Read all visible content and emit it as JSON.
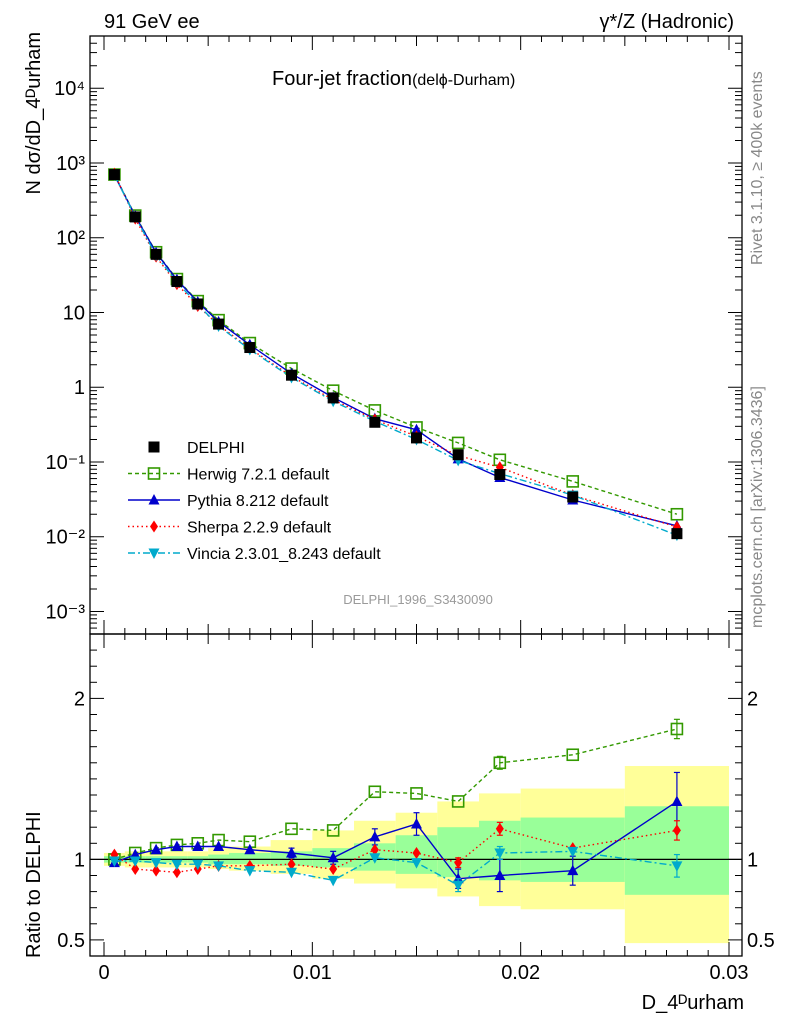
{
  "header": {
    "left": "91 GeV ee",
    "right": "γ*/Z (Hadronic)"
  },
  "side_labels": {
    "rivet": "Rivet 3.1.10, ≥ 400k events",
    "mcplots": "mcplots.cern.ch [arXiv:1306.3436]"
  },
  "chart_data": {
    "type": "line",
    "title": "Four-jet fraction",
    "title_sub": "(delϕ-Durham)",
    "xlabel": "D_4ᴰurham",
    "ylabel": "N dσ/dD_4ᴰurham",
    "ratio_ylabel": "Ratio to DELPHI",
    "analysis": "DELPHI_1996_S3430090",
    "xlim": [
      0,
      0.03
    ],
    "ylim": [
      0.0005,
      50000
    ],
    "ratio_ylim": [
      0.4,
      2.4
    ],
    "x_ticks": [
      "0",
      "0.01",
      "0.02",
      "0.03"
    ],
    "y_ticks": [
      "10⁻³",
      "10⁻²",
      "10⁻¹",
      "1",
      "10",
      "10²",
      "10³",
      "10⁴"
    ],
    "ratio_ticks": [
      "0.5",
      "1",
      "2"
    ],
    "x": [
      0.0005,
      0.0015,
      0.0025,
      0.0035,
      0.0045,
      0.0055,
      0.007,
      0.009,
      0.011,
      0.013,
      0.015,
      0.017,
      0.019,
      0.0225,
      0.0275
    ],
    "bin_edges": [
      0,
      0.001,
      0.002,
      0.003,
      0.004,
      0.005,
      0.006,
      0.008,
      0.01,
      0.012,
      0.014,
      0.016,
      0.018,
      0.02,
      0.025,
      0.03
    ],
    "band_total": [
      [
        0.96,
        1.04
      ],
      [
        0.95,
        1.05
      ],
      [
        0.95,
        1.05
      ],
      [
        0.95,
        1.05
      ],
      [
        0.95,
        1.05
      ],
      [
        0.94,
        1.07
      ],
      [
        0.93,
        1.08
      ],
      [
        0.91,
        1.12
      ],
      [
        0.88,
        1.18
      ],
      [
        0.85,
        1.24
      ],
      [
        0.82,
        1.29
      ],
      [
        0.77,
        1.36
      ],
      [
        0.71,
        1.41
      ],
      [
        0.69,
        1.44
      ],
      [
        0.48,
        1.58
      ]
    ],
    "band_stat": [
      [
        0.98,
        1.02
      ],
      [
        0.98,
        1.02
      ],
      [
        0.98,
        1.02
      ],
      [
        0.98,
        1.02
      ],
      [
        0.98,
        1.02
      ],
      [
        0.97,
        1.03
      ],
      [
        0.97,
        1.04
      ],
      [
        0.96,
        1.05
      ],
      [
        0.95,
        1.07
      ],
      [
        0.93,
        1.1
      ],
      [
        0.91,
        1.15
      ],
      [
        0.89,
        1.2
      ],
      [
        0.87,
        1.24
      ],
      [
        0.86,
        1.26
      ],
      [
        0.78,
        1.33
      ]
    ],
    "series": [
      {
        "name": "DELPHI",
        "color": "#000000",
        "marker": "square",
        "values": [
          700,
          190,
          60,
          26,
          13,
          7,
          3.4,
          1.45,
          0.72,
          0.34,
          0.21,
          0.125,
          0.068,
          0.034,
          0.011
        ],
        "ratio": [
          1,
          1,
          1,
          1,
          1,
          1,
          1,
          1,
          1,
          1,
          1,
          1,
          1,
          1,
          1
        ]
      },
      {
        "name": "Herwig 7.2.1 default",
        "color": "#339900",
        "marker": "open-square",
        "dash": "4,3",
        "values": [
          700,
          198,
          64,
          28,
          14.2,
          7.9,
          3.9,
          1.78,
          0.9,
          0.49,
          0.29,
          0.18,
          0.107,
          0.055,
          0.02
        ],
        "ratio": [
          1.0,
          1.04,
          1.07,
          1.09,
          1.1,
          1.12,
          1.11,
          1.19,
          1.18,
          1.42,
          1.41,
          1.36,
          1.6,
          1.65,
          1.81
        ],
        "ratio_err": [
          0,
          0,
          0,
          0,
          0,
          0,
          0,
          0,
          0,
          0,
          0,
          0,
          0.04,
          0,
          0.06
        ]
      },
      {
        "name": "Pythia 8.212 default",
        "color": "#0000cc",
        "marker": "triangle-up",
        "values": [
          690,
          195,
          63,
          27.5,
          13.8,
          7.5,
          3.7,
          1.52,
          0.73,
          0.38,
          0.27,
          0.11,
          0.062,
          0.031,
          0.014
        ],
        "ratio": [
          0.98,
          1.03,
          1.06,
          1.08,
          1.08,
          1.08,
          1.06,
          1.04,
          1.01,
          1.14,
          1.22,
          0.88,
          0.9,
          0.93,
          1.36
        ],
        "ratio_err": [
          0,
          0,
          0,
          0,
          0,
          0,
          0,
          0.03,
          0.04,
          0.05,
          0.07,
          0.06,
          0.1,
          0.09,
          0.18
        ]
      },
      {
        "name": "Sherpa 2.2.9 default",
        "color": "#ff0000",
        "marker": "diamond",
        "dash": "1.5,3",
        "values": [
          720,
          180,
          56,
          24,
          12.2,
          6.8,
          3.3,
          1.4,
          0.68,
          0.37,
          0.22,
          0.122,
          0.085,
          0.036,
          0.0135
        ],
        "ratio": [
          1.03,
          0.94,
          0.93,
          0.92,
          0.94,
          0.96,
          0.96,
          0.97,
          0.94,
          1.06,
          1.04,
          0.98,
          1.19,
          1.07,
          1.18
        ],
        "ratio_err": [
          0,
          0,
          0,
          0,
          0,
          0,
          0,
          0,
          0,
          0,
          0,
          0.03,
          0.04,
          0,
          0.06
        ]
      },
      {
        "name": "Vincia 2.3.01_8.243 default",
        "color": "#00aacc",
        "marker": "triangle-down",
        "dash": "7,3,2,3",
        "values": [
          690,
          190,
          58,
          25.5,
          12.8,
          6.6,
          3.2,
          1.35,
          0.65,
          0.35,
          0.2,
          0.105,
          0.07,
          0.036,
          0.0105
        ],
        "ratio": [
          0.99,
          0.99,
          0.98,
          0.97,
          0.97,
          0.96,
          0.93,
          0.92,
          0.87,
          1.01,
          0.98,
          0.84,
          1.04,
          1.05,
          0.96
        ],
        "ratio_err": [
          0,
          0,
          0,
          0,
          0,
          0,
          0,
          0,
          0,
          0,
          0,
          0.04,
          0.04,
          0,
          0.07
        ]
      }
    ]
  }
}
